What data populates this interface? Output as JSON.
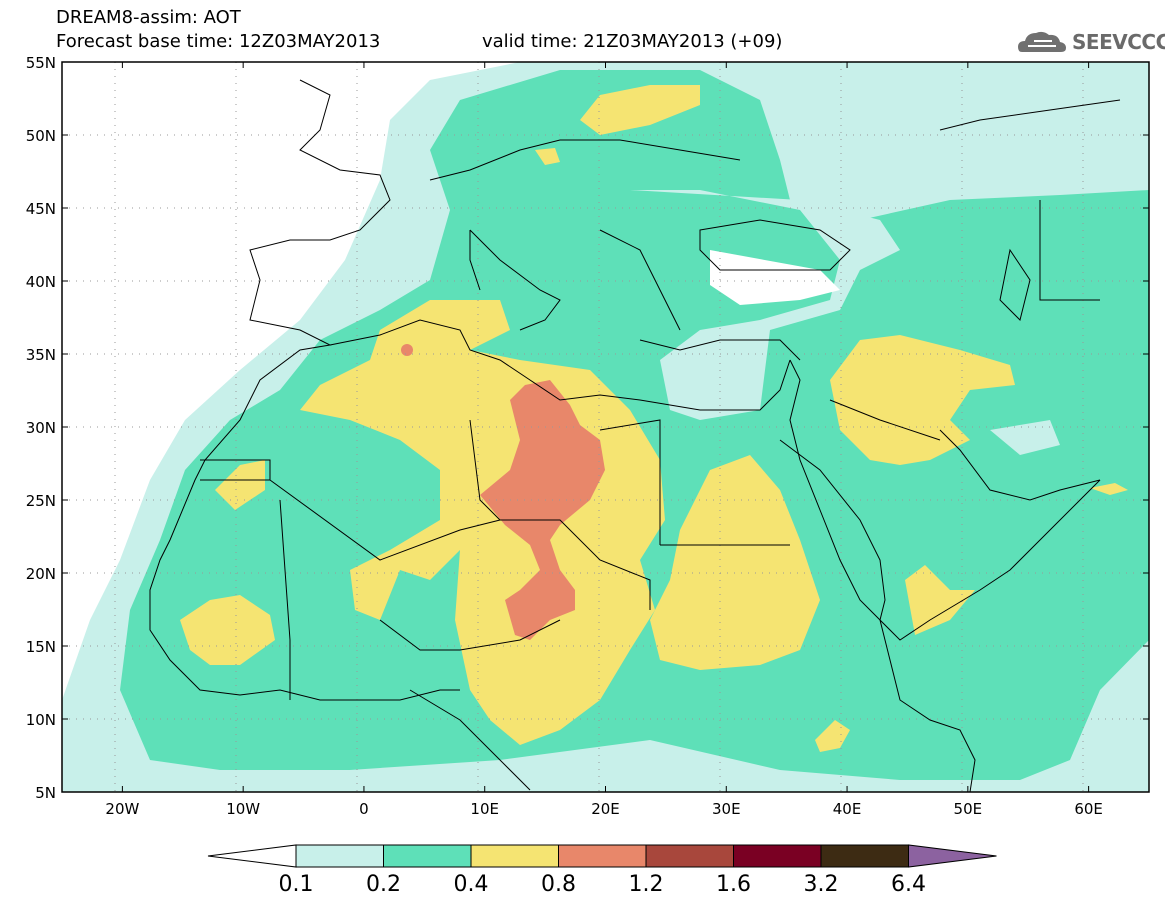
{
  "header": {
    "title": "DREAM8-assim: AOT",
    "base_time": "Forecast base time: 12Z03MAY2013",
    "valid_time": "valid time: 21Z03MAY2013 (+09)"
  },
  "logo": {
    "text": "SEEVCCC",
    "icon": "cloud-icon"
  },
  "map": {
    "lat_labels": [
      "55N",
      "50N",
      "45N",
      "40N",
      "35N",
      "30N",
      "25N",
      "20N",
      "15N",
      "10N",
      "5N"
    ],
    "lon_labels": [
      "20W",
      "10W",
      "0",
      "10E",
      "20E",
      "30E",
      "40E",
      "50E",
      "60E"
    ],
    "lat_values": [
      55,
      50,
      45,
      40,
      35,
      30,
      25,
      20,
      15,
      10,
      5
    ],
    "lon_values": [
      -20,
      -10,
      0,
      10,
      20,
      30,
      40,
      50,
      60
    ],
    "lon_range": [
      -25,
      65
    ],
    "lat_range": [
      5,
      55
    ],
    "grid": "dotted"
  },
  "colorbar": {
    "labels": [
      "0.1",
      "0.2",
      "0.4",
      "0.8",
      "1.2",
      "1.6",
      "3.2",
      "6.4"
    ],
    "colors": [
      "#ffffff",
      "#c8f0ea",
      "#5ee0b8",
      "#f5e472",
      "#e8876a",
      "#a8473c",
      "#7a0023",
      "#3d2b13",
      "#8c62a0"
    ]
  }
}
